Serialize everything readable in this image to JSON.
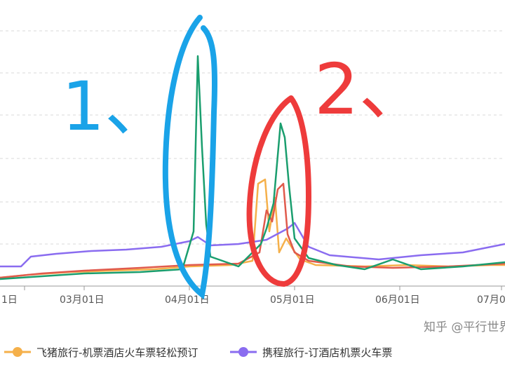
{
  "chart_data": {
    "type": "line",
    "x_ticks": [
      "1日",
      "03月01日",
      "04月01日",
      "05月01日",
      "06月01日",
      "07月0"
    ],
    "series": [
      {
        "name": "飞猪旅行-机票酒店火车票轻松预订",
        "color": "#f5b04a"
      },
      {
        "name": "携程旅行-订酒店机票火车票",
        "color": "#8a6cf0"
      },
      {
        "name": "",
        "color": "#e05a4c"
      },
      {
        "name": "",
        "color": "#1a9e6e"
      }
    ],
    "grid": true,
    "legend_position": "bottom",
    "annotations": [
      {
        "text": "1、",
        "color": "#1aa3e8"
      },
      {
        "text": "2、",
        "color": "#ee3b3b"
      }
    ]
  },
  "watermark": {
    "text": "知乎 @平行世界"
  }
}
